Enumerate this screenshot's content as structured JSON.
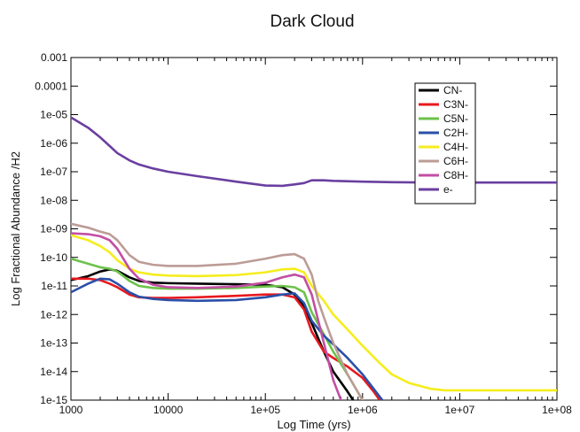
{
  "chart_data": {
    "type": "line",
    "title": "Dark Cloud",
    "xlabel": "Log Time (yrs)",
    "ylabel": "Log Fractional Abundance /H2",
    "x_scale": "log",
    "y_scale": "log",
    "xlim": [
      1000,
      100000000
    ],
    "ylim": [
      1e-15,
      0.001
    ],
    "grid": false,
    "legend_position": "top-right",
    "x_ticks": [
      {
        "value": 1000,
        "label": "1000"
      },
      {
        "value": 10000,
        "label": "10000"
      },
      {
        "value": 100000,
        "label": "1e+05"
      },
      {
        "value": 1000000,
        "label": "1e+06"
      },
      {
        "value": 10000000,
        "label": "1e+07"
      },
      {
        "value": 100000000,
        "label": "1e+08"
      }
    ],
    "y_ticks": [
      {
        "value": 1e-15,
        "label": "1e-15"
      },
      {
        "value": 1e-14,
        "label": "1e-14"
      },
      {
        "value": 1e-13,
        "label": "1e-13"
      },
      {
        "value": 1e-12,
        "label": "1e-12"
      },
      {
        "value": 1e-11,
        "label": "1e-11"
      },
      {
        "value": 1e-10,
        "label": "1e-10"
      },
      {
        "value": 1e-09,
        "label": "1e-09"
      },
      {
        "value": 1e-08,
        "label": "1e-08"
      },
      {
        "value": 1e-07,
        "label": "1e-07"
      },
      {
        "value": 1e-06,
        "label": "1e-06"
      },
      {
        "value": 1e-05,
        "label": "1e-05"
      },
      {
        "value": 0.0001,
        "label": "0.0001"
      },
      {
        "value": 0.001,
        "label": "0.001"
      }
    ],
    "series": [
      {
        "name": "CN-",
        "color": "#000000",
        "x": [
          1000,
          1500,
          2000,
          2500,
          3000,
          4000,
          5000,
          7000,
          10000,
          20000,
          50000,
          100000,
          150000,
          200000,
          250000,
          300000,
          400000,
          500000,
          700000,
          800000
        ],
        "y": [
          1.6e-11,
          2.2e-11,
          3.2e-11,
          3.8e-11,
          3.4e-11,
          2e-11,
          1.5e-11,
          1.3e-11,
          1.25e-11,
          1.2e-11,
          1.15e-11,
          1.1e-11,
          9e-12,
          5e-12,
          2e-12,
          5e-13,
          5e-14,
          1e-14,
          2e-15,
          1e-15
        ]
      },
      {
        "name": "C3N-",
        "color": "#e8191f",
        "x": [
          1000,
          1500,
          2000,
          2500,
          3000,
          4000,
          5000,
          7000,
          10000,
          20000,
          50000,
          100000,
          150000,
          200000,
          250000,
          300000,
          400000,
          500000,
          700000,
          1000000,
          1300000,
          1500000
        ],
        "y": [
          1.8e-11,
          1.8e-11,
          1.6e-11,
          1.2e-11,
          9e-12,
          5e-12,
          4e-12,
          3.8e-12,
          3.8e-12,
          4e-12,
          4.5e-12,
          5e-12,
          5e-12,
          4e-12,
          1.5e-12,
          2.5e-13,
          5e-14,
          3e-14,
          1.5e-14,
          6e-15,
          2e-15,
          1e-15
        ]
      },
      {
        "name": "C5N-",
        "color": "#6cc24a",
        "x": [
          1000,
          1500,
          2000,
          2500,
          3000,
          4000,
          5000,
          7000,
          10000,
          20000,
          50000,
          100000,
          150000,
          200000,
          250000,
          300000,
          400000,
          500000,
          700000,
          1000000
        ],
        "y": [
          9e-11,
          6e-11,
          4.5e-11,
          4e-11,
          3.2e-11,
          1.5e-11,
          1e-11,
          8.5e-12,
          8e-12,
          8e-12,
          8.5e-12,
          9.5e-12,
          1e-11,
          9e-12,
          6e-12,
          1.2e-12,
          2e-13,
          5e-14,
          8e-15,
          1e-15
        ]
      },
      {
        "name": "C2H-",
        "color": "#2a50a8",
        "x": [
          1000,
          1500,
          2000,
          2500,
          3000,
          4000,
          5000,
          7000,
          10000,
          20000,
          50000,
          100000,
          150000,
          200000,
          250000,
          300000,
          400000,
          500000,
          700000,
          1000000,
          1300000,
          1600000
        ],
        "y": [
          6e-12,
          1.2e-11,
          1.8e-11,
          1.7e-11,
          1.2e-11,
          6e-12,
          4.2e-12,
          3.5e-12,
          3.2e-12,
          3e-12,
          3.2e-12,
          4e-12,
          5e-12,
          5.5e-12,
          2.5e-12,
          6e-13,
          1.8e-13,
          9e-14,
          3e-14,
          8e-15,
          2.5e-15,
          1e-15
        ]
      },
      {
        "name": "C4H-",
        "color": "#f5ed1d",
        "x": [
          1000,
          1500,
          2000,
          2500,
          3000,
          4000,
          5000,
          7000,
          10000,
          20000,
          50000,
          100000,
          150000,
          200000,
          250000,
          300000,
          400000,
          500000,
          700000,
          1000000,
          1500000,
          2000000,
          3000000,
          5000000,
          7000000,
          10000000,
          100000000
        ],
        "y": [
          6e-10,
          4e-10,
          2.5e-10,
          1.5e-10,
          8e-11,
          4e-11,
          3e-11,
          2.5e-11,
          2.3e-11,
          2.2e-11,
          2.4e-11,
          3e-11,
          3.8e-11,
          4e-11,
          3e-11,
          1e-11,
          3e-12,
          1e-12,
          3e-13,
          8e-14,
          2e-14,
          8e-15,
          4e-15,
          2.5e-15,
          2.2e-15,
          2.2e-15,
          2.2e-15
        ]
      },
      {
        "name": "C6H-",
        "color": "#bc9c96",
        "x": [
          1000,
          1500,
          2000,
          2500,
          3000,
          4000,
          5000,
          7000,
          10000,
          20000,
          50000,
          100000,
          150000,
          200000,
          250000,
          300000,
          350000,
          400000,
          500000,
          700000,
          1000000
        ],
        "y": [
          1.5e-09,
          1.1e-09,
          8e-10,
          6.5e-10,
          4e-10,
          1.2e-10,
          7e-11,
          5.5e-11,
          5e-11,
          5e-11,
          6e-11,
          9e-11,
          1.2e-10,
          1.3e-10,
          9e-11,
          2.5e-11,
          3e-12,
          8e-13,
          1e-13,
          8e-15,
          1e-15
        ]
      },
      {
        "name": "C8H-",
        "color": "#c24ea5",
        "x": [
          1000,
          1500,
          2000,
          2500,
          3000,
          4000,
          5000,
          7000,
          10000,
          20000,
          50000,
          100000,
          150000,
          200000,
          250000,
          300000,
          400000,
          500000,
          600000
        ],
        "y": [
          7e-10,
          6.5e-10,
          5.5e-10,
          4e-10,
          2e-10,
          4e-11,
          1.8e-11,
          1.1e-11,
          9e-12,
          8.5e-12,
          9.5e-12,
          1.3e-11,
          2e-11,
          2.5e-11,
          2e-11,
          5e-12,
          1e-13,
          5e-15,
          1e-15
        ]
      },
      {
        "name": "e-",
        "color": "#6a3fa0",
        "x": [
          1000,
          1500,
          2000,
          2500,
          3000,
          4000,
          5000,
          7000,
          10000,
          20000,
          50000,
          100000,
          150000,
          200000,
          250000,
          300000,
          350000,
          400000,
          500000,
          1000000,
          2000000,
          5000000,
          10000000,
          100000000
        ],
        "y": [
          8e-06,
          3.5e-06,
          1.6e-06,
          8e-07,
          4.5e-07,
          2.5e-07,
          1.8e-07,
          1.3e-07,
          1e-07,
          7e-08,
          4.5e-08,
          3.3e-08,
          3.2e-08,
          3.6e-08,
          4e-08,
          5e-08,
          5e-08,
          5e-08,
          4.8e-08,
          4.5e-08,
          4.3e-08,
          4.2e-08,
          4.2e-08,
          4.2e-08
        ]
      }
    ]
  }
}
